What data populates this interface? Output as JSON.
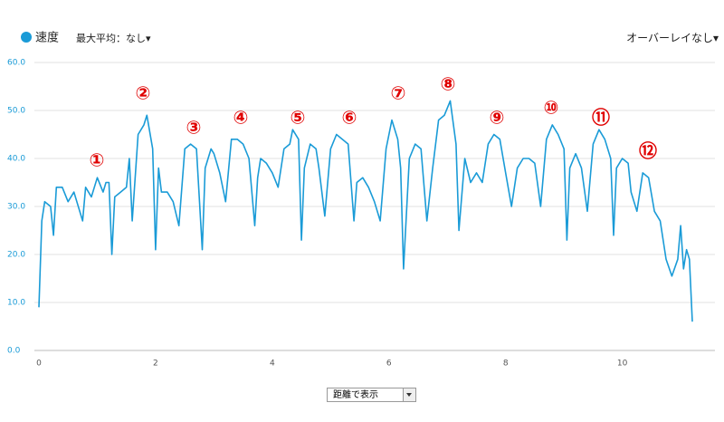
{
  "chart_data": {
    "type": "line",
    "x": [
      0,
      0.05,
      0.1,
      0.2,
      0.25,
      0.3,
      0.4,
      0.5,
      0.6,
      0.7,
      0.75,
      0.8,
      0.9,
      1.0,
      1.1,
      1.15,
      1.2,
      1.25,
      1.3,
      1.4,
      1.5,
      1.55,
      1.6,
      1.7,
      1.8,
      1.85,
      1.95,
      2.0,
      2.05,
      2.1,
      2.2,
      2.3,
      2.4,
      2.5,
      2.6,
      2.7,
      2.8,
      2.85,
      2.95,
      3.0,
      3.1,
      3.2,
      3.3,
      3.4,
      3.5,
      3.6,
      3.7,
      3.75,
      3.8,
      3.9,
      4.0,
      4.1,
      4.2,
      4.3,
      4.35,
      4.45,
      4.5,
      4.55,
      4.65,
      4.75,
      4.8,
      4.9,
      5.0,
      5.1,
      5.2,
      5.3,
      5.4,
      5.45,
      5.55,
      5.65,
      5.75,
      5.85,
      5.95,
      6.05,
      6.15,
      6.2,
      6.25,
      6.35,
      6.45,
      6.55,
      6.65,
      6.75,
      6.85,
      6.95,
      7.05,
      7.15,
      7.2,
      7.3,
      7.4,
      7.5,
      7.6,
      7.7,
      7.8,
      7.9,
      8.0,
      8.1,
      8.2,
      8.3,
      8.4,
      8.5,
      8.6,
      8.7,
      8.8,
      8.9,
      9.0,
      9.05,
      9.1,
      9.2,
      9.3,
      9.4,
      9.5,
      9.6,
      9.7,
      9.8,
      9.85,
      9.9,
      10.0,
      10.1,
      10.15,
      10.25,
      10.35,
      10.45,
      10.55,
      10.65,
      10.75,
      10.85,
      10.95,
      11.0,
      11.05,
      11.1,
      11.15,
      11.2
    ],
    "series": [
      {
        "name": "速度",
        "color": "#1a9bd7",
        "values": [
          9,
          27,
          31,
          30,
          24,
          34,
          34,
          31,
          33,
          29,
          27,
          34,
          32,
          36,
          33,
          35,
          35,
          20,
          32,
          33,
          34,
          40,
          27,
          45,
          47,
          49,
          42,
          21,
          38,
          33,
          33,
          31,
          26,
          42,
          43,
          42,
          21,
          38,
          42,
          41,
          37,
          31,
          44,
          44,
          43,
          40,
          26,
          36,
          40,
          39,
          37,
          34,
          42,
          43,
          46,
          44,
          23,
          38,
          43,
          42,
          38,
          28,
          42,
          45,
          44,
          43,
          27,
          35,
          36,
          34,
          31,
          27,
          42,
          48,
          44,
          38,
          17,
          40,
          43,
          42,
          27,
          38,
          48,
          49,
          52,
          43,
          25,
          40,
          35,
          37,
          35,
          43,
          45,
          44,
          37,
          30,
          38,
          40,
          40,
          39,
          30,
          44,
          47,
          45,
          42,
          23,
          38,
          41,
          38,
          29,
          43,
          46,
          44,
          40,
          24,
          38,
          40,
          39,
          33,
          29,
          37,
          36,
          29,
          27,
          19,
          15.5,
          19,
          26,
          17,
          21,
          19,
          6
        ]
      }
    ],
    "xlim": [
      0,
      11.2
    ],
    "xticks": [
      0,
      2,
      4,
      6,
      8,
      10
    ],
    "ylim": [
      0,
      60
    ],
    "yticks": [
      {
        "value": 0,
        "label": "0.0"
      },
      {
        "value": 10,
        "label": "10.0"
      },
      {
        "value": 20,
        "label": "20.0"
      },
      {
        "value": 30,
        "label": "30.0"
      },
      {
        "value": 40,
        "label": "40.0"
      },
      {
        "value": 50,
        "label": "50.0"
      },
      {
        "value": 60,
        "label": "60.0"
      }
    ],
    "grid": true,
    "max_average": "最大平均：なし▾",
    "overlay": "オーバーレイなし▾",
    "x_mode": "距離で表示",
    "annotations": [
      "①",
      "②",
      "③",
      "④",
      "⑤",
      "⑥",
      "⑦",
      "⑧",
      "⑨",
      "⑩",
      "⑪",
      "⑫"
    ]
  }
}
